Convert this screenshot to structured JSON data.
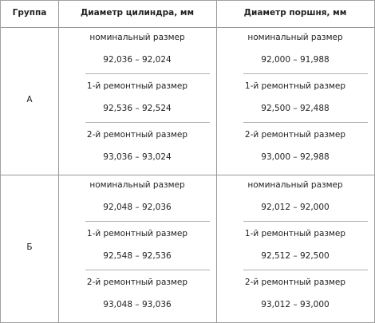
{
  "header": [
    "Группа",
    "Диаметр цилиндра, мм",
    "Диаметр поршня, мм"
  ],
  "groups": [
    {
      "label": "А",
      "cylinder": [
        {
          "size": "номинальный размер",
          "range": "92,036 – 92,024"
        },
        {
          "size": "1-й ремонтный размер",
          "range": "92,536 – 92,524"
        },
        {
          "size": "2-й ремонтный размер",
          "range": "93,036 – 93,024"
        }
      ],
      "piston": [
        {
          "size": "номинальный размер",
          "range": "92,000 – 91,988"
        },
        {
          "size": "1-й ремонтный размер",
          "range": "92,500 – 92,488"
        },
        {
          "size": "2-й ремонтный размер",
          "range": "93,000 – 92,988"
        }
      ]
    },
    {
      "label": "Б",
      "cylinder": [
        {
          "size": "номинальный размер",
          "range": "92,048 – 92,036"
        },
        {
          "size": "1-й ремонтный размер",
          "range": "92,548 – 92,536"
        },
        {
          "size": "2-й ремонтный размер",
          "range": "93,048 – 93,036"
        }
      ],
      "piston": [
        {
          "size": "номинальный размер",
          "range": "92,012 – 92,000"
        },
        {
          "size": "1-й ремонтный размер",
          "range": "92,512 – 92,500"
        },
        {
          "size": "2-й ремонтный размер",
          "range": "93,012 – 93,000"
        }
      ]
    }
  ]
}
